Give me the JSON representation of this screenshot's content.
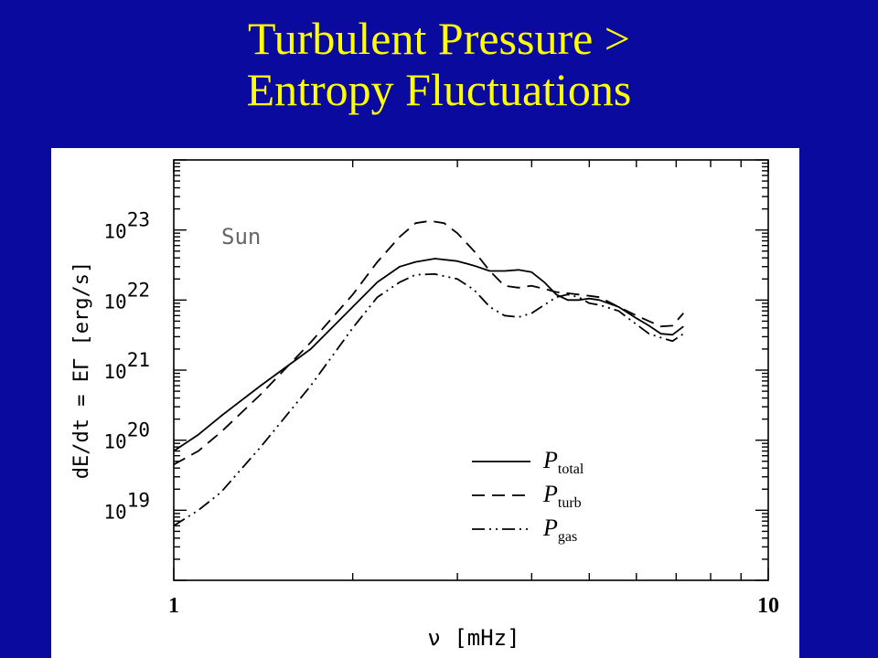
{
  "slide": {
    "title_line1": "Turbulent Pressure >",
    "title_line2": "Entropy Fluctuations",
    "title_color": "#ffff00",
    "background_color": "#0a0a9e"
  },
  "chart_data": {
    "type": "line",
    "xscale": "log",
    "yscale": "log",
    "xlim": [
      1,
      10
    ],
    "ylim": [
      1e+18,
      1e+24
    ],
    "xlabel": "ν [mHz]",
    "ylabel": "dE/dt = EΓ [erg/s]",
    "annotation": "Sun",
    "x_ticks": [
      {
        "value": 1,
        "label": "1"
      },
      {
        "value": 10,
        "label": "10"
      }
    ],
    "y_ticks": [
      {
        "value": 1e+19,
        "base": "10",
        "exp": "19"
      },
      {
        "value": 1e+20,
        "base": "10",
        "exp": "20"
      },
      {
        "value": 1e+21,
        "base": "10",
        "exp": "21"
      },
      {
        "value": 1e+22,
        "base": "10",
        "exp": "22"
      },
      {
        "value": 1e+23,
        "base": "10",
        "exp": "23"
      }
    ],
    "legend_position": "bottom-right",
    "grid": false,
    "series": [
      {
        "name": "P",
        "sub": "total",
        "style": "solid",
        "x": [
          1.0,
          1.1,
          1.2,
          1.4,
          1.7,
          2.0,
          2.2,
          2.4,
          2.55,
          2.75,
          3.0,
          3.2,
          3.4,
          3.6,
          3.8,
          4.0,
          4.2,
          4.4,
          4.6,
          4.8,
          5.0,
          5.2,
          5.6,
          6.0,
          6.3,
          6.6,
          6.9,
          7.2
        ],
        "y": [
          7e+19,
          1.2e+20,
          2.2e+20,
          6e+20,
          2e+21,
          8e+21,
          1.8e+22,
          3e+22,
          3.5e+22,
          3.9e+22,
          3.6e+22,
          3.1e+22,
          2.6e+22,
          2.6e+22,
          2.7e+22,
          2.5e+22,
          1.8e+22,
          1.2e+22,
          1e+22,
          1e+22,
          1.05e+22,
          1e+22,
          8e+21,
          5.5e+21,
          4.3e+21,
          3.3e+21,
          3.2e+21,
          4.2e+21
        ]
      },
      {
        "name": "P",
        "sub": "turb",
        "style": "dashed",
        "x": [
          1.0,
          1.1,
          1.2,
          1.4,
          1.7,
          2.0,
          2.2,
          2.4,
          2.55,
          2.7,
          2.85,
          3.0,
          3.2,
          3.4,
          3.6,
          3.8,
          4.0,
          4.2,
          4.4,
          4.6,
          4.8,
          5.0,
          5.2,
          5.6,
          6.0,
          6.3,
          6.6,
          6.9,
          7.2
        ],
        "y": [
          4.5e+19,
          7e+19,
          1.3e+20,
          4.5e+20,
          2.5e+21,
          1.2e+22,
          3.5e+22,
          8e+22,
          1.25e+23,
          1.35e+23,
          1.25e+23,
          9e+22,
          5e+22,
          2.6e+22,
          1.6e+22,
          1.5e+22,
          1.6e+22,
          1.45e+22,
          1.3e+22,
          1.25e+22,
          1.2e+22,
          1.15e+22,
          1.1e+22,
          8e+21,
          6e+21,
          5e+21,
          4.2e+21,
          4.3e+21,
          6.5e+21
        ]
      },
      {
        "name": "P",
        "sub": "gas",
        "style": "dashdotdot",
        "x": [
          1.0,
          1.1,
          1.2,
          1.4,
          1.7,
          2.0,
          2.2,
          2.4,
          2.55,
          2.75,
          3.0,
          3.2,
          3.4,
          3.6,
          3.8,
          4.0,
          4.2,
          4.4,
          4.6,
          4.8,
          5.0,
          5.2,
          5.6,
          6.0,
          6.3,
          6.6,
          6.9,
          7.2
        ],
        "y": [
          6e+18,
          1e+19,
          1.8e+19,
          8e+19,
          6e+20,
          4e+21,
          1.1e+22,
          1.8e+22,
          2.3e+22,
          2.35e+22,
          2e+22,
          1.4e+22,
          8e+21,
          6e+21,
          5.7e+21,
          6.5e+21,
          8.5e+21,
          1.1e+22,
          1.2e+22,
          1.1e+22,
          9e+21,
          8.5e+21,
          7e+21,
          4.5e+21,
          3.3e+21,
          2.9e+21,
          2.6e+21,
          3.3e+21
        ]
      }
    ]
  }
}
